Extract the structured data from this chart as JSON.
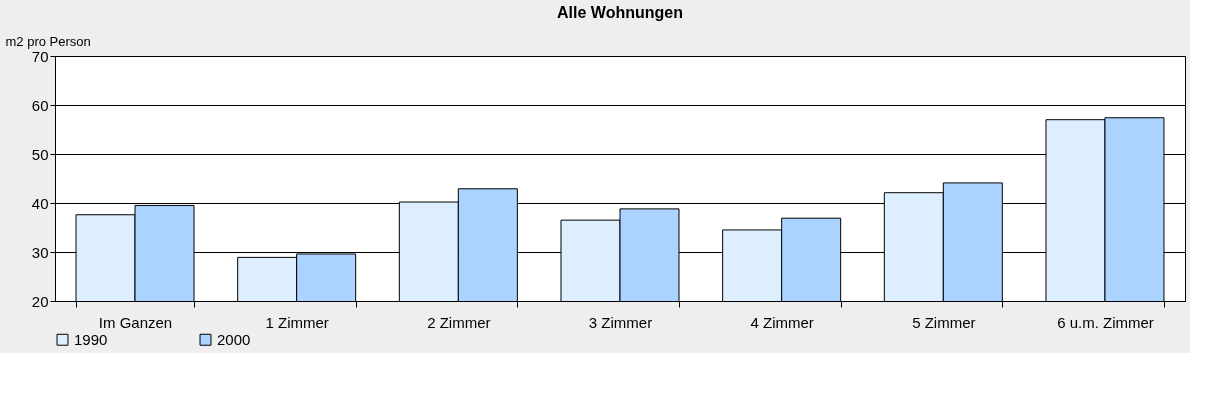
{
  "chart_data": {
    "type": "bar",
    "title": "Alle Wohnungen",
    "ylabel": "m2 pro Person",
    "categories": [
      "Im Ganzen",
      "1 Zimmer",
      "2 Zimmer",
      "3 Zimmer",
      "4 Zimmer",
      "5 Zimmer",
      "6 u.m. Zimmer"
    ],
    "series": [
      {
        "name": "1990",
        "color": "#ddeeff",
        "values": [
          37.6,
          28.9,
          40.2,
          36.5,
          34.5,
          42.1,
          57.0
        ]
      },
      {
        "name": "2000",
        "color": "#aad4ff",
        "values": [
          39.5,
          29.6,
          42.9,
          38.8,
          36.9,
          44.1,
          57.4
        ]
      }
    ],
    "ylim": [
      20,
      70
    ],
    "yticks": [
      20,
      30,
      40,
      50,
      60,
      70
    ],
    "grid": "y",
    "legend": "bottom"
  }
}
